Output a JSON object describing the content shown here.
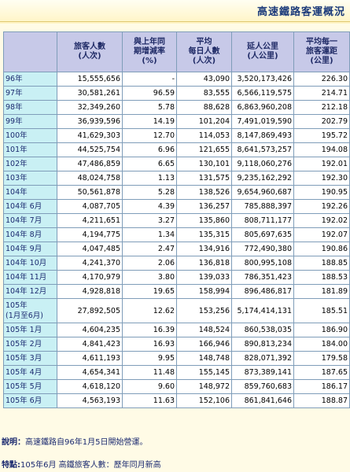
{
  "title": "高速鐵路客運概況",
  "headers": [
    "",
    "旅客人數\n(人次)",
    "與上年同\n期增減率\n(%)",
    "平均\n每日人數\n(人次)",
    "延人公里\n(人公里)",
    "平均每一\n旅客運距\n(公里)"
  ],
  "rows": [
    {
      "label": "96年",
      "passengers": "15,555,656",
      "change": "-",
      "daily": "43,090",
      "pkm": "3,520,173,426",
      "dist": "226.30"
    },
    {
      "label": "97年",
      "passengers": "30,581,261",
      "change": "96.59",
      "daily": "83,555",
      "pkm": "6,566,119,575",
      "dist": "214.71"
    },
    {
      "label": "98年",
      "passengers": "32,349,260",
      "change": "5.78",
      "daily": "88,628",
      "pkm": "6,863,960,208",
      "dist": "212.18"
    },
    {
      "label": "99年",
      "passengers": "36,939,596",
      "change": "14.19",
      "daily": "101,204",
      "pkm": "7,491,019,590",
      "dist": "202.79"
    },
    {
      "label": "100年",
      "passengers": "41,629,303",
      "change": "12.70",
      "daily": "114,053",
      "pkm": "8,147,869,493",
      "dist": "195.72"
    },
    {
      "label": "101年",
      "passengers": "44,525,754",
      "change": "6.96",
      "daily": "121,655",
      "pkm": "8,641,573,257",
      "dist": "194.08"
    },
    {
      "label": "102年",
      "passengers": "47,486,859",
      "change": "6.65",
      "daily": "130,101",
      "pkm": "9,118,060,276",
      "dist": "192.01"
    },
    {
      "label": "103年",
      "passengers": "48,024,758",
      "change": "1.13",
      "daily": "131,575",
      "pkm": "9,235,162,292",
      "dist": "192.30"
    },
    {
      "label": "104年",
      "passengers": "50,561,878",
      "change": "5.28",
      "daily": "138,526",
      "pkm": "9,654,960,687",
      "dist": "190.95"
    },
    {
      "label": "104年 6月",
      "passengers": "4,087,705",
      "change": "4.39",
      "daily": "136,257",
      "pkm": "785,888,397",
      "dist": "192.26"
    },
    {
      "label": "104年 7月",
      "passengers": "4,211,651",
      "change": "3.27",
      "daily": "135,860",
      "pkm": "808,711,177",
      "dist": "192.02"
    },
    {
      "label": "104年 8月",
      "passengers": "4,194,775",
      "change": "1.34",
      "daily": "135,315",
      "pkm": "805,697,635",
      "dist": "192.07"
    },
    {
      "label": "104年 9月",
      "passengers": "4,047,485",
      "change": "2.47",
      "daily": "134,916",
      "pkm": "772,490,380",
      "dist": "190.86"
    },
    {
      "label": "104年 10月",
      "passengers": "4,241,370",
      "change": "2.06",
      "daily": "136,818",
      "pkm": "800,995,108",
      "dist": "188.85"
    },
    {
      "label": "104年 11月",
      "passengers": "4,170,979",
      "change": "3.80",
      "daily": "139,033",
      "pkm": "786,351,423",
      "dist": "188.53"
    },
    {
      "label": "104年 12月",
      "passengers": "4,928,818",
      "change": "19.65",
      "daily": "158,994",
      "pkm": "896,486,817",
      "dist": "181.89"
    },
    {
      "label": "105年\n(1月至6月)",
      "passengers": "27,892,505",
      "change": "12.62",
      "daily": "153,256",
      "pkm": "5,174,414,131",
      "dist": "185.51",
      "tall": true
    },
    {
      "label": "105年 1月",
      "passengers": "4,604,235",
      "change": "16.39",
      "daily": "148,524",
      "pkm": "860,538,035",
      "dist": "186.90"
    },
    {
      "label": "105年 2月",
      "passengers": "4,841,423",
      "change": "16.93",
      "daily": "166,946",
      "pkm": "890,813,234",
      "dist": "184.00"
    },
    {
      "label": "105年 3月",
      "passengers": "4,611,193",
      "change": "9.95",
      "daily": "148,748",
      "pkm": "828,071,392",
      "dist": "179.58"
    },
    {
      "label": "105年 4月",
      "passengers": "4,654,341",
      "change": "11.48",
      "daily": "155,145",
      "pkm": "873,389,141",
      "dist": "187.65"
    },
    {
      "label": "105年 5月",
      "passengers": "4,618,120",
      "change": "9.60",
      "daily": "148,972",
      "pkm": "859,760,683",
      "dist": "186.17"
    },
    {
      "label": "105年 6月",
      "passengers": "4,563,193",
      "change": "11.63",
      "daily": "152,106",
      "pkm": "861,841,646",
      "dist": "188.87"
    }
  ],
  "notes": {
    "explain_label": "說明：",
    "explain_text": "高速鐵路自96年1月5日開始營運。",
    "feature_label": "特點:",
    "feature_text": "105年6月 高鐵旅客人數：歷年同月新高"
  }
}
